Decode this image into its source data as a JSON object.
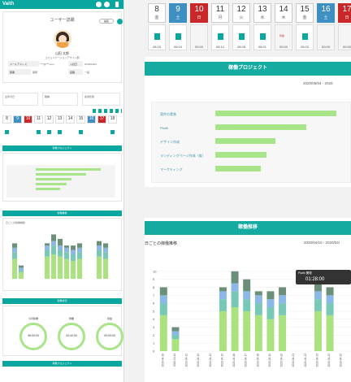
{
  "app": {
    "brand": "Vaith"
  },
  "left": {
    "title": "ユーザー詳細",
    "edit_button": "編集",
    "user_name": "山田 太郎",
    "user_sub": "コミュニケーションデザイン部",
    "fields": [
      {
        "label": "メールアドレス",
        "value": "***@***.com"
      },
      {
        "label": "入社日",
        "value": "2019/04/01"
      },
      {
        "label": "部署",
        "value": "開発"
      },
      {
        "label": "役職",
        "value": "一般"
      }
    ],
    "stat_boxes": [
      "生年月日",
      "職種",
      "雇用形態"
    ],
    "mini_days": [
      {
        "n": "8",
        "type": "normal"
      },
      {
        "n": "9",
        "type": "sat"
      },
      {
        "n": "10",
        "type": "sun"
      },
      {
        "n": "11",
        "type": "normal"
      },
      {
        "n": "12",
        "type": "normal"
      },
      {
        "n": "13",
        "type": "normal"
      },
      {
        "n": "14",
        "type": "normal"
      },
      {
        "n": "15",
        "type": "normal"
      },
      {
        "n": "16",
        "type": "sat"
      },
      {
        "n": "17",
        "type": "sun"
      },
      {
        "n": "18",
        "type": "normal"
      }
    ],
    "section_project": "稼働プロジェクト",
    "section_trend": "稼働推移",
    "section_trend_sub": "日ごとの稼働推移",
    "section_status": "稼働状況",
    "circles": [
      {
        "label": "今月稼働",
        "value": "96:00:00"
      },
      {
        "label": "残業",
        "value": "04:40:00"
      },
      {
        "label": "有給",
        "value": "00:00:00"
      }
    ],
    "section_bottom": "稼働プロジェクト"
  },
  "calendar": {
    "days": [
      {
        "n": "8",
        "w": "金",
        "type": "normal"
      },
      {
        "n": "9",
        "w": "土",
        "type": "sat"
      },
      {
        "n": "10",
        "w": "日",
        "type": "sun"
      },
      {
        "n": "11",
        "w": "月",
        "type": "normal"
      },
      {
        "n": "12",
        "w": "火",
        "type": "normal"
      },
      {
        "n": "13",
        "w": "水",
        "type": "normal"
      },
      {
        "n": "14",
        "w": "木",
        "type": "normal"
      },
      {
        "n": "15",
        "w": "金",
        "type": "normal"
      },
      {
        "n": "16",
        "w": "土",
        "type": "sat"
      },
      {
        "n": "17",
        "w": "日",
        "type": "sun"
      }
    ],
    "cells": [
      {
        "mark": true,
        "time": "08:15"
      },
      {
        "mark": true,
        "time": "06:04"
      },
      {
        "mark": false,
        "time": "00:00"
      },
      {
        "mark": true,
        "time": "08:14"
      },
      {
        "mark": true,
        "time": "08:08"
      },
      {
        "mark": true,
        "time": "08:01"
      },
      {
        "mark": false,
        "tag": "有給",
        "time": "00:00"
      },
      {
        "mark": true,
        "time": "08:00"
      },
      {
        "mark": false,
        "time": "00:00"
      },
      {
        "mark": false,
        "time": "00:00"
      }
    ]
  },
  "projects": {
    "title": "稼働プロジェクト",
    "range": "2020/05/04 - 2020",
    "items": [
      {
        "label": "案件の実装",
        "value": 0.85
      },
      {
        "label": "Plaith",
        "value": 0.64
      },
      {
        "label": "デザイン作成",
        "value": 0.42
      },
      {
        "label": "ランディングページ作成（仮）",
        "value": 0.36
      },
      {
        "label": "マーケティング",
        "value": 0.32
      }
    ]
  },
  "trend": {
    "title": "稼働推移",
    "subtitle": "日ごとの稼働推移",
    "range": "2020/04/10 - 2020/04/",
    "tooltip": {
      "title": "Plaith 開発",
      "value": "01:28:00"
    }
  },
  "chart_data": {
    "type": "bar",
    "title": "日ごとの稼働推移",
    "ylim": [
      0,
      11
    ],
    "categories": [
      "2020-04-10",
      "2020-04-11",
      "2020-04-12",
      "2020-04-13",
      "2020-04-14",
      "2020-04-15",
      "2020-04-16",
      "2020-04-17",
      "2020-04-18",
      "2020-04-19",
      "2020-04-20",
      "2020-04-21",
      "2020-04-22",
      "2020-04-23",
      "2020-04-24",
      "2020-04-25"
    ],
    "series": [
      {
        "values": [
          4.5,
          1.5,
          0,
          0,
          0,
          5.0,
          5.5,
          5.0,
          4.5,
          4.0,
          4.5,
          0,
          0,
          5.0,
          4.5,
          0
        ]
      },
      {
        "values": [
          1.5,
          0.5,
          0,
          0,
          0,
          1.5,
          2.0,
          1.5,
          1.5,
          1.5,
          1.5,
          0,
          0,
          1.5,
          1.5,
          0
        ]
      },
      {
        "values": [
          1.0,
          0.5,
          0,
          0,
          0,
          1.0,
          1.0,
          1.0,
          1.0,
          1.0,
          1.0,
          0,
          0,
          1.0,
          1.0,
          0
        ]
      },
      {
        "values": [
          1.0,
          0.5,
          0,
          0,
          0,
          0.5,
          1.5,
          1.5,
          0.5,
          1.0,
          1.0,
          0,
          0,
          1.0,
          1.0,
          0
        ]
      }
    ],
    "colors": [
      "#a9e27f",
      "#78c8b6",
      "#8bb8e6",
      "#6c8f7a"
    ]
  }
}
